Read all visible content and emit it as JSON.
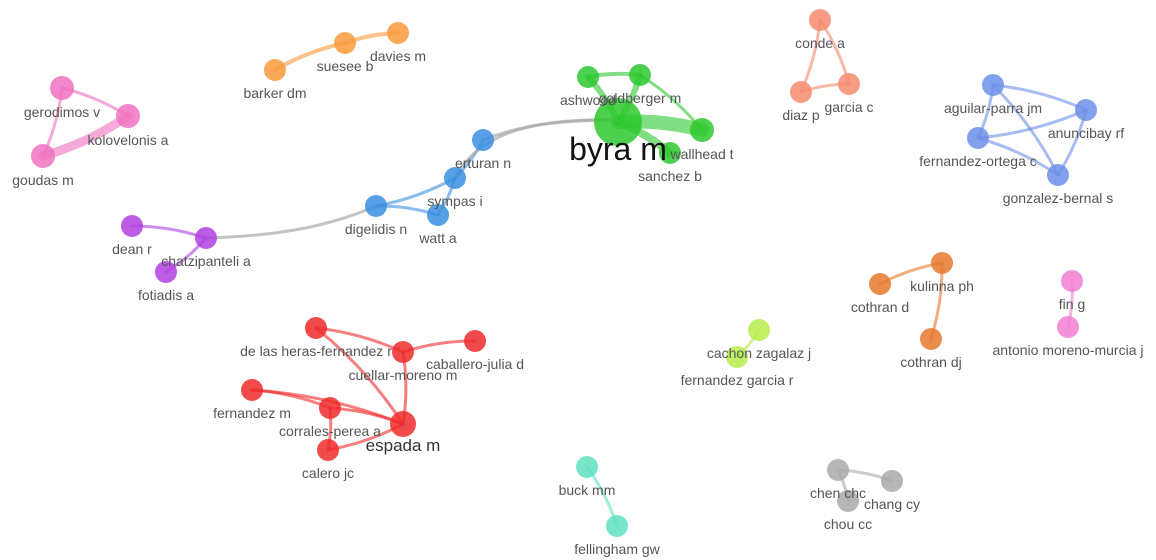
{
  "clusters": [
    {
      "color": "#f072c0"
    },
    {
      "color": "#f99a3c"
    },
    {
      "color": "#f48b6e"
    },
    {
      "color": "#6c8fe8"
    },
    {
      "color": "#2ec82e"
    },
    {
      "color": "#3a8fe0"
    },
    {
      "color": "#b03fe0"
    },
    {
      "color": "#ee2a2a"
    },
    {
      "color": "#b6ec4a"
    },
    {
      "color": "#e5782e"
    },
    {
      "color": "#f27ed2"
    },
    {
      "color": "#5fe0c0"
    },
    {
      "color": "#a9a9a9"
    }
  ],
  "nodes": [
    {
      "label": "gerodimos v",
      "cluster": 0
    },
    {
      "label": "kolovelonis a",
      "cluster": 0
    },
    {
      "label": "goudas m",
      "cluster": 0
    },
    {
      "label": "barker dm",
      "cluster": 1
    },
    {
      "label": "suesee b",
      "cluster": 1
    },
    {
      "label": "davies m",
      "cluster": 1
    },
    {
      "label": "conde a",
      "cluster": 2
    },
    {
      "label": "diaz p",
      "cluster": 2
    },
    {
      "label": "garcia c",
      "cluster": 2
    },
    {
      "label": "aguilar-parra jm",
      "cluster": 3
    },
    {
      "label": "anuncibay rf",
      "cluster": 3
    },
    {
      "label": "fernandez-ortega c",
      "cluster": 3
    },
    {
      "label": "gonzalez-bernal s",
      "cluster": 3
    },
    {
      "label": "ashwood",
      "cluster": 4
    },
    {
      "label": "goldberger m",
      "cluster": 4
    },
    {
      "label": "byra m",
      "cluster": 4
    },
    {
      "label": "wallhead t",
      "cluster": 4
    },
    {
      "label": "sanchez b",
      "cluster": 4
    },
    {
      "label": "erturan n",
      "cluster": 5
    },
    {
      "label": "sympas i",
      "cluster": 5
    },
    {
      "label": "digelidis n",
      "cluster": 5
    },
    {
      "label": "watt a",
      "cluster": 5
    },
    {
      "label": "dean r",
      "cluster": 6
    },
    {
      "label": "chatzipanteli a",
      "cluster": 6
    },
    {
      "label": "fotiadis a",
      "cluster": 6
    },
    {
      "label": "de las heras-fernandez r",
      "cluster": 7
    },
    {
      "label": "cuellar-moreno m",
      "cluster": 7
    },
    {
      "label": "caballero-julia d",
      "cluster": 7
    },
    {
      "label": "fernandez m",
      "cluster": 7
    },
    {
      "label": "corrales-perea a",
      "cluster": 7
    },
    {
      "label": "espada m",
      "cluster": 7
    },
    {
      "label": "calero jc",
      "cluster": 7
    },
    {
      "label": "cachon zagalaz j",
      "cluster": 8
    },
    {
      "label": "fernandez garcia r",
      "cluster": 8
    },
    {
      "label": "cothran d",
      "cluster": 9
    },
    {
      "label": "kulinna ph",
      "cluster": 9
    },
    {
      "label": "cothran dj",
      "cluster": 9
    },
    {
      "label": "fin g",
      "cluster": 10
    },
    {
      "label": "antonio moreno-murcia j",
      "cluster": 10
    },
    {
      "label": "buck mm",
      "cluster": 11
    },
    {
      "label": "fellingham gw",
      "cluster": 11
    },
    {
      "label": "chen chc",
      "cluster": 12
    },
    {
      "label": "chang cy",
      "cluster": 12
    },
    {
      "label": "chou cc",
      "cluster": 12
    }
  ]
}
